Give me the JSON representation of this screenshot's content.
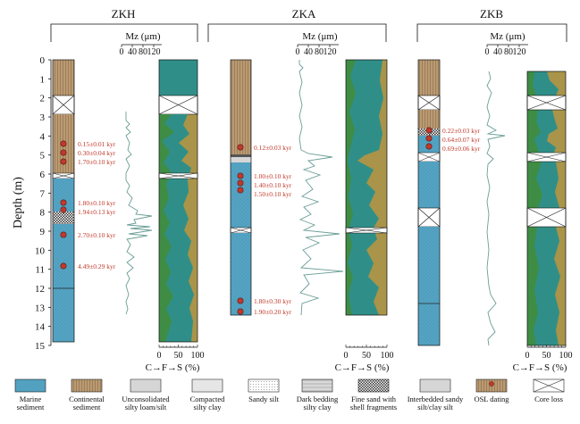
{
  "depth_axis": {
    "label": "Depth (m)",
    "ticks": [
      "0",
      "1",
      "2",
      "3",
      "4",
      "5",
      "6",
      "7",
      "8",
      "9",
      "10",
      "11",
      "12",
      "13",
      "14",
      "15"
    ]
  },
  "cores": [
    {
      "name": "ZKH",
      "mz_label": "Mz (μm)",
      "mz_ticks": [
        "0",
        "40",
        "80",
        "120"
      ],
      "cfs_ticks": [
        "0",
        "50",
        "100"
      ],
      "cfs_label": "C→F→S (%)",
      "osl": [
        "0.15±0.01 kyr",
        "0.30±0.04 kyr",
        "1.70±0.10 kyr",
        "1.80±0.10 kyr",
        "1.94±0.13 kyr",
        "2.70±0.10 kyr",
        "4.49±0.29 kyr"
      ]
    },
    {
      "name": "ZKA",
      "mz_label": "Mz (μm)",
      "mz_ticks": [
        "0",
        "40",
        "80",
        "120"
      ],
      "cfs_ticks": [
        "0",
        "50",
        "100"
      ],
      "cfs_label": "C→F→S (%)",
      "osl": [
        "0.12±0.03 kyr",
        "1.00±0.10 kyr",
        "1.40±0.10 kyr",
        "1.50±0.10 kyr",
        "1.80±0.30 kyr",
        "1.90±0.20 kyr"
      ]
    },
    {
      "name": "ZKB",
      "mz_label": "Mz (μm)",
      "mz_ticks": [
        "0",
        "40",
        "80",
        "120"
      ],
      "cfs_ticks": [
        "0",
        "50",
        "100"
      ],
      "cfs_label": "C→F→S (%)",
      "osl": [
        "0.22±0.03 kyr",
        "0.64±0.07 kyr",
        "0.69±0.06 kyr"
      ]
    }
  ],
  "legend": [
    {
      "label": "Marine\nsediment",
      "pattern": "marine"
    },
    {
      "label": "Continental\nsediment",
      "pattern": "continental"
    },
    {
      "label": "Unconsolidated\nsilty loam/silt",
      "pattern": "loam"
    },
    {
      "label": "Compacted\nsilty clay",
      "pattern": "compacted"
    },
    {
      "label": "Sandy silt",
      "pattern": "sandysilt"
    },
    {
      "label": "Dark bedding\nsilty clay",
      "pattern": "dark"
    },
    {
      "label": "Fine sand with\nshell fragments",
      "pattern": "finesand"
    },
    {
      "label": "Interbedded sandy\nsilt/clay silt",
      "pattern": "interbedded"
    },
    {
      "label": "OSL dating",
      "pattern": "osl"
    },
    {
      "label": "Core loss",
      "pattern": "loss"
    }
  ],
  "colors": {
    "marine": "#4f9fbf",
    "continental": "#b99a72",
    "coarse": "#3f8c44",
    "fine": "#2f8f88",
    "sand": "#a99449",
    "mz_line": "#6a9e96",
    "osl_dot": "#c0392b",
    "osl_text": "#c0392b"
  }
}
